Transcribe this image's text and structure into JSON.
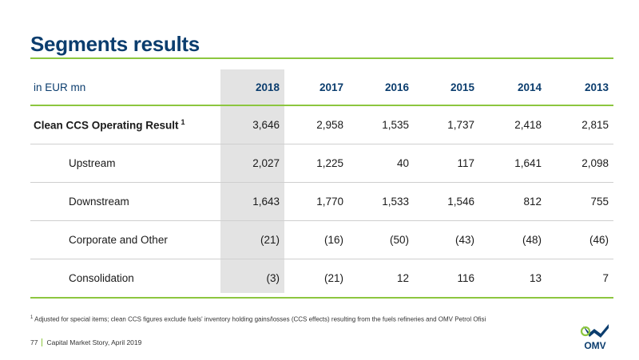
{
  "title": "Segments results",
  "table": {
    "unit_label": "in EUR mn",
    "years": [
      "2018",
      "2017",
      "2016",
      "2015",
      "2014",
      "2013"
    ],
    "rows": [
      {
        "label": "Clean CCS Operating Result",
        "sup": "1",
        "values": [
          "3,646",
          "2,958",
          "1,535",
          "1,737",
          "2,418",
          "2,815"
        ]
      },
      {
        "label": "Upstream",
        "sup": "",
        "values": [
          "2,027",
          "1,225",
          "40",
          "117",
          "1,641",
          "2,098"
        ]
      },
      {
        "label": "Downstream",
        "sup": "",
        "values": [
          "1,643",
          "1,770",
          "1,533",
          "1,546",
          "812",
          "755"
        ]
      },
      {
        "label": "Corporate and Other",
        "sup": "",
        "values": [
          "(21)",
          "(16)",
          "(50)",
          "(43)",
          "(48)",
          "(46)"
        ]
      },
      {
        "label": "Consolidation",
        "sup": "",
        "values": [
          "(3)",
          "(21)",
          "12",
          "116",
          "13",
          "7"
        ]
      }
    ]
  },
  "footnote": {
    "marker": "1",
    "text": "Adjusted for special items; clean CCS figures exclude fuels' inventory holding gains/losses (CCS effects) resulting from the fuels refineries and OMV Petrol Ofisi"
  },
  "footer": {
    "page_number": "77",
    "document": "Capital Market Story, April 2019"
  },
  "logo": {
    "text": "OMV",
    "icon": "omv-logo",
    "colors": {
      "navy": "#0b3d6e",
      "green": "#8cc63f"
    }
  },
  "colors": {
    "title": "#0b3d6e",
    "accent": "#8cc63f",
    "highlight_column": "#e3e3e3"
  }
}
